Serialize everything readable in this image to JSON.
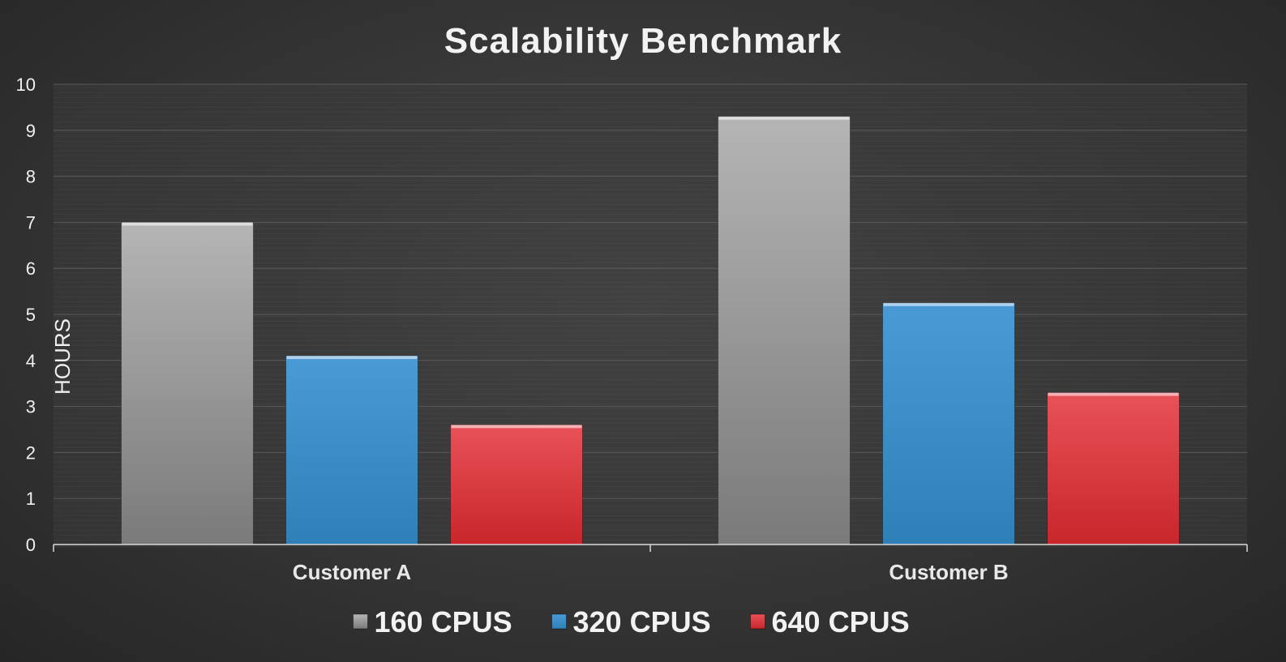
{
  "chart_data": {
    "type": "bar",
    "title": "Scalability Benchmark",
    "xlabel": "",
    "ylabel": "HOURS",
    "ylim": [
      0,
      10
    ],
    "yticks": [
      "0",
      "1",
      "2",
      "3",
      "4",
      "5",
      "6",
      "7",
      "8",
      "9",
      "10"
    ],
    "categories": [
      "Customer A",
      "Customer B"
    ],
    "series": [
      {
        "name": "160 CPUS",
        "values": [
          7.0,
          9.3
        ],
        "color": "#a0a0a0"
      },
      {
        "name": "320 CPUS",
        "values": [
          4.1,
          5.25
        ],
        "color": "#3d8ec8"
      },
      {
        "name": "640 CPUS",
        "values": [
          2.6,
          3.3
        ],
        "color": "#de3438"
      }
    ],
    "grid": true,
    "legend_position": "bottom"
  }
}
